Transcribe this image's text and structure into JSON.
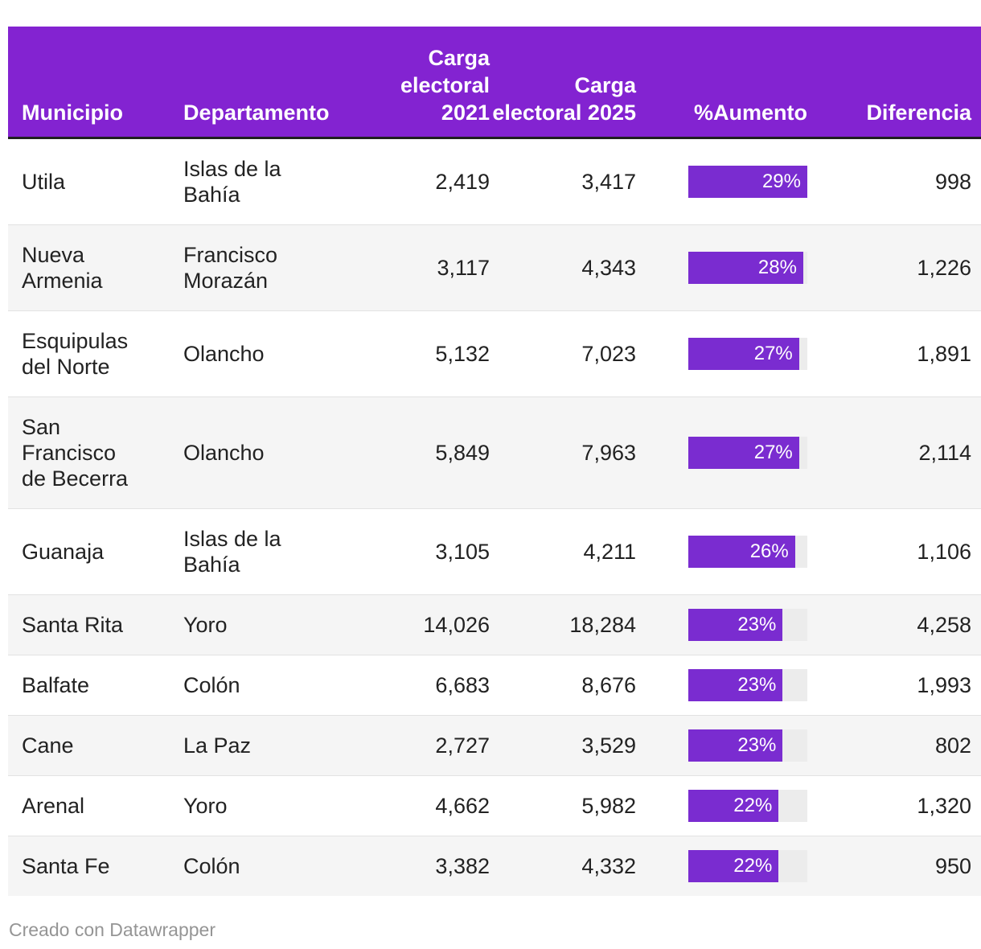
{
  "table": {
    "bar_scale_max": 29,
    "columns": [
      {
        "key": "municipio",
        "label": "Municipio"
      },
      {
        "key": "departamento",
        "label": "Departamento"
      },
      {
        "key": "carga_2021",
        "label": "Carga electoral 2021"
      },
      {
        "key": "carga_2025",
        "label": "Carga electoral 2025"
      },
      {
        "key": "aumento",
        "label": "%Aumento"
      },
      {
        "key": "diferencia",
        "label": "Diferencia"
      }
    ],
    "rows": [
      {
        "municipio": "Utila",
        "departamento": "Islas de la Bahía",
        "carga_2021": "2,419",
        "carga_2025": "3,417",
        "aumento_pct": 29,
        "aumento_label": "29%",
        "diferencia": "998"
      },
      {
        "municipio": "Nueva Armenia",
        "departamento": "Francisco Morazán",
        "carga_2021": "3,117",
        "carga_2025": "4,343",
        "aumento_pct": 28,
        "aumento_label": "28%",
        "diferencia": "1,226"
      },
      {
        "municipio": "Esquipulas del Norte",
        "departamento": "Olancho",
        "carga_2021": "5,132",
        "carga_2025": "7,023",
        "aumento_pct": 27,
        "aumento_label": "27%",
        "diferencia": "1,891"
      },
      {
        "municipio": "San Francisco de Becerra",
        "departamento": "Olancho",
        "carga_2021": "5,849",
        "carga_2025": "7,963",
        "aumento_pct": 27,
        "aumento_label": "27%",
        "diferencia": "2,114"
      },
      {
        "municipio": "Guanaja",
        "departamento": "Islas de la Bahía",
        "carga_2021": "3,105",
        "carga_2025": "4,211",
        "aumento_pct": 26,
        "aumento_label": "26%",
        "diferencia": "1,106"
      },
      {
        "municipio": "Santa Rita",
        "departamento": "Yoro",
        "carga_2021": "14,026",
        "carga_2025": "18,284",
        "aumento_pct": 23,
        "aumento_label": "23%",
        "diferencia": "4,258"
      },
      {
        "municipio": "Balfate",
        "departamento": "Colón",
        "carga_2021": "6,683",
        "carga_2025": "8,676",
        "aumento_pct": 23,
        "aumento_label": "23%",
        "diferencia": "1,993"
      },
      {
        "municipio": "Cane",
        "departamento": "La Paz",
        "carga_2021": "2,727",
        "carga_2025": "3,529",
        "aumento_pct": 23,
        "aumento_label": "23%",
        "diferencia": "802"
      },
      {
        "municipio": "Arenal",
        "departamento": "Yoro",
        "carga_2021": "4,662",
        "carga_2025": "5,982",
        "aumento_pct": 22,
        "aumento_label": "22%",
        "diferencia": "1,320"
      },
      {
        "municipio": "Santa Fe",
        "departamento": "Colón",
        "carga_2021": "3,382",
        "carga_2025": "4,332",
        "aumento_pct": 22,
        "aumento_label": "22%",
        "diferencia": "950"
      }
    ]
  },
  "footer": {
    "credit": "Creado con Datawrapper"
  },
  "colors": {
    "header_bg": "#8323d1",
    "header_text": "#ffffff",
    "bar_fill": "#7a2cd0",
    "bar_track": "#ececec",
    "row_alt_bg": "#f5f5f5",
    "row_border": "#e2e2e2",
    "border_dark": "#1f1f1f",
    "body_text": "#222222",
    "footer_text": "#959595"
  },
  "chart_data": {
    "type": "table",
    "title": "",
    "columns": [
      "Municipio",
      "Departamento",
      "Carga electoral 2021",
      "Carga electoral 2025",
      "%Aumento",
      "Diferencia"
    ],
    "rows": [
      [
        "Utila",
        "Islas de la Bahía",
        2419,
        3417,
        29,
        998
      ],
      [
        "Nueva Armenia",
        "Francisco Morazán",
        3117,
        4343,
        28,
        1226
      ],
      [
        "Esquipulas del Norte",
        "Olancho",
        5132,
        7023,
        27,
        1891
      ],
      [
        "San Francisco de Becerra",
        "Olancho",
        5849,
        7963,
        27,
        2114
      ],
      [
        "Guanaja",
        "Islas de la Bahía",
        3105,
        4211,
        26,
        1106
      ],
      [
        "Santa Rita",
        "Yoro",
        14026,
        18284,
        23,
        4258
      ],
      [
        "Balfate",
        "Colón",
        6683,
        8676,
        23,
        1993
      ],
      [
        "Cane",
        "La Paz",
        2727,
        3529,
        23,
        802
      ],
      [
        "Arenal",
        "Yoro",
        4662,
        5982,
        22,
        1320
      ],
      [
        "Santa Fe",
        "Colón",
        3382,
        4332,
        22,
        950
      ]
    ],
    "bar_column": "%Aumento",
    "bar_scale": [
      0,
      29
    ],
    "notes": "Bar in %Aumento column scaled so 29% = full track width"
  }
}
